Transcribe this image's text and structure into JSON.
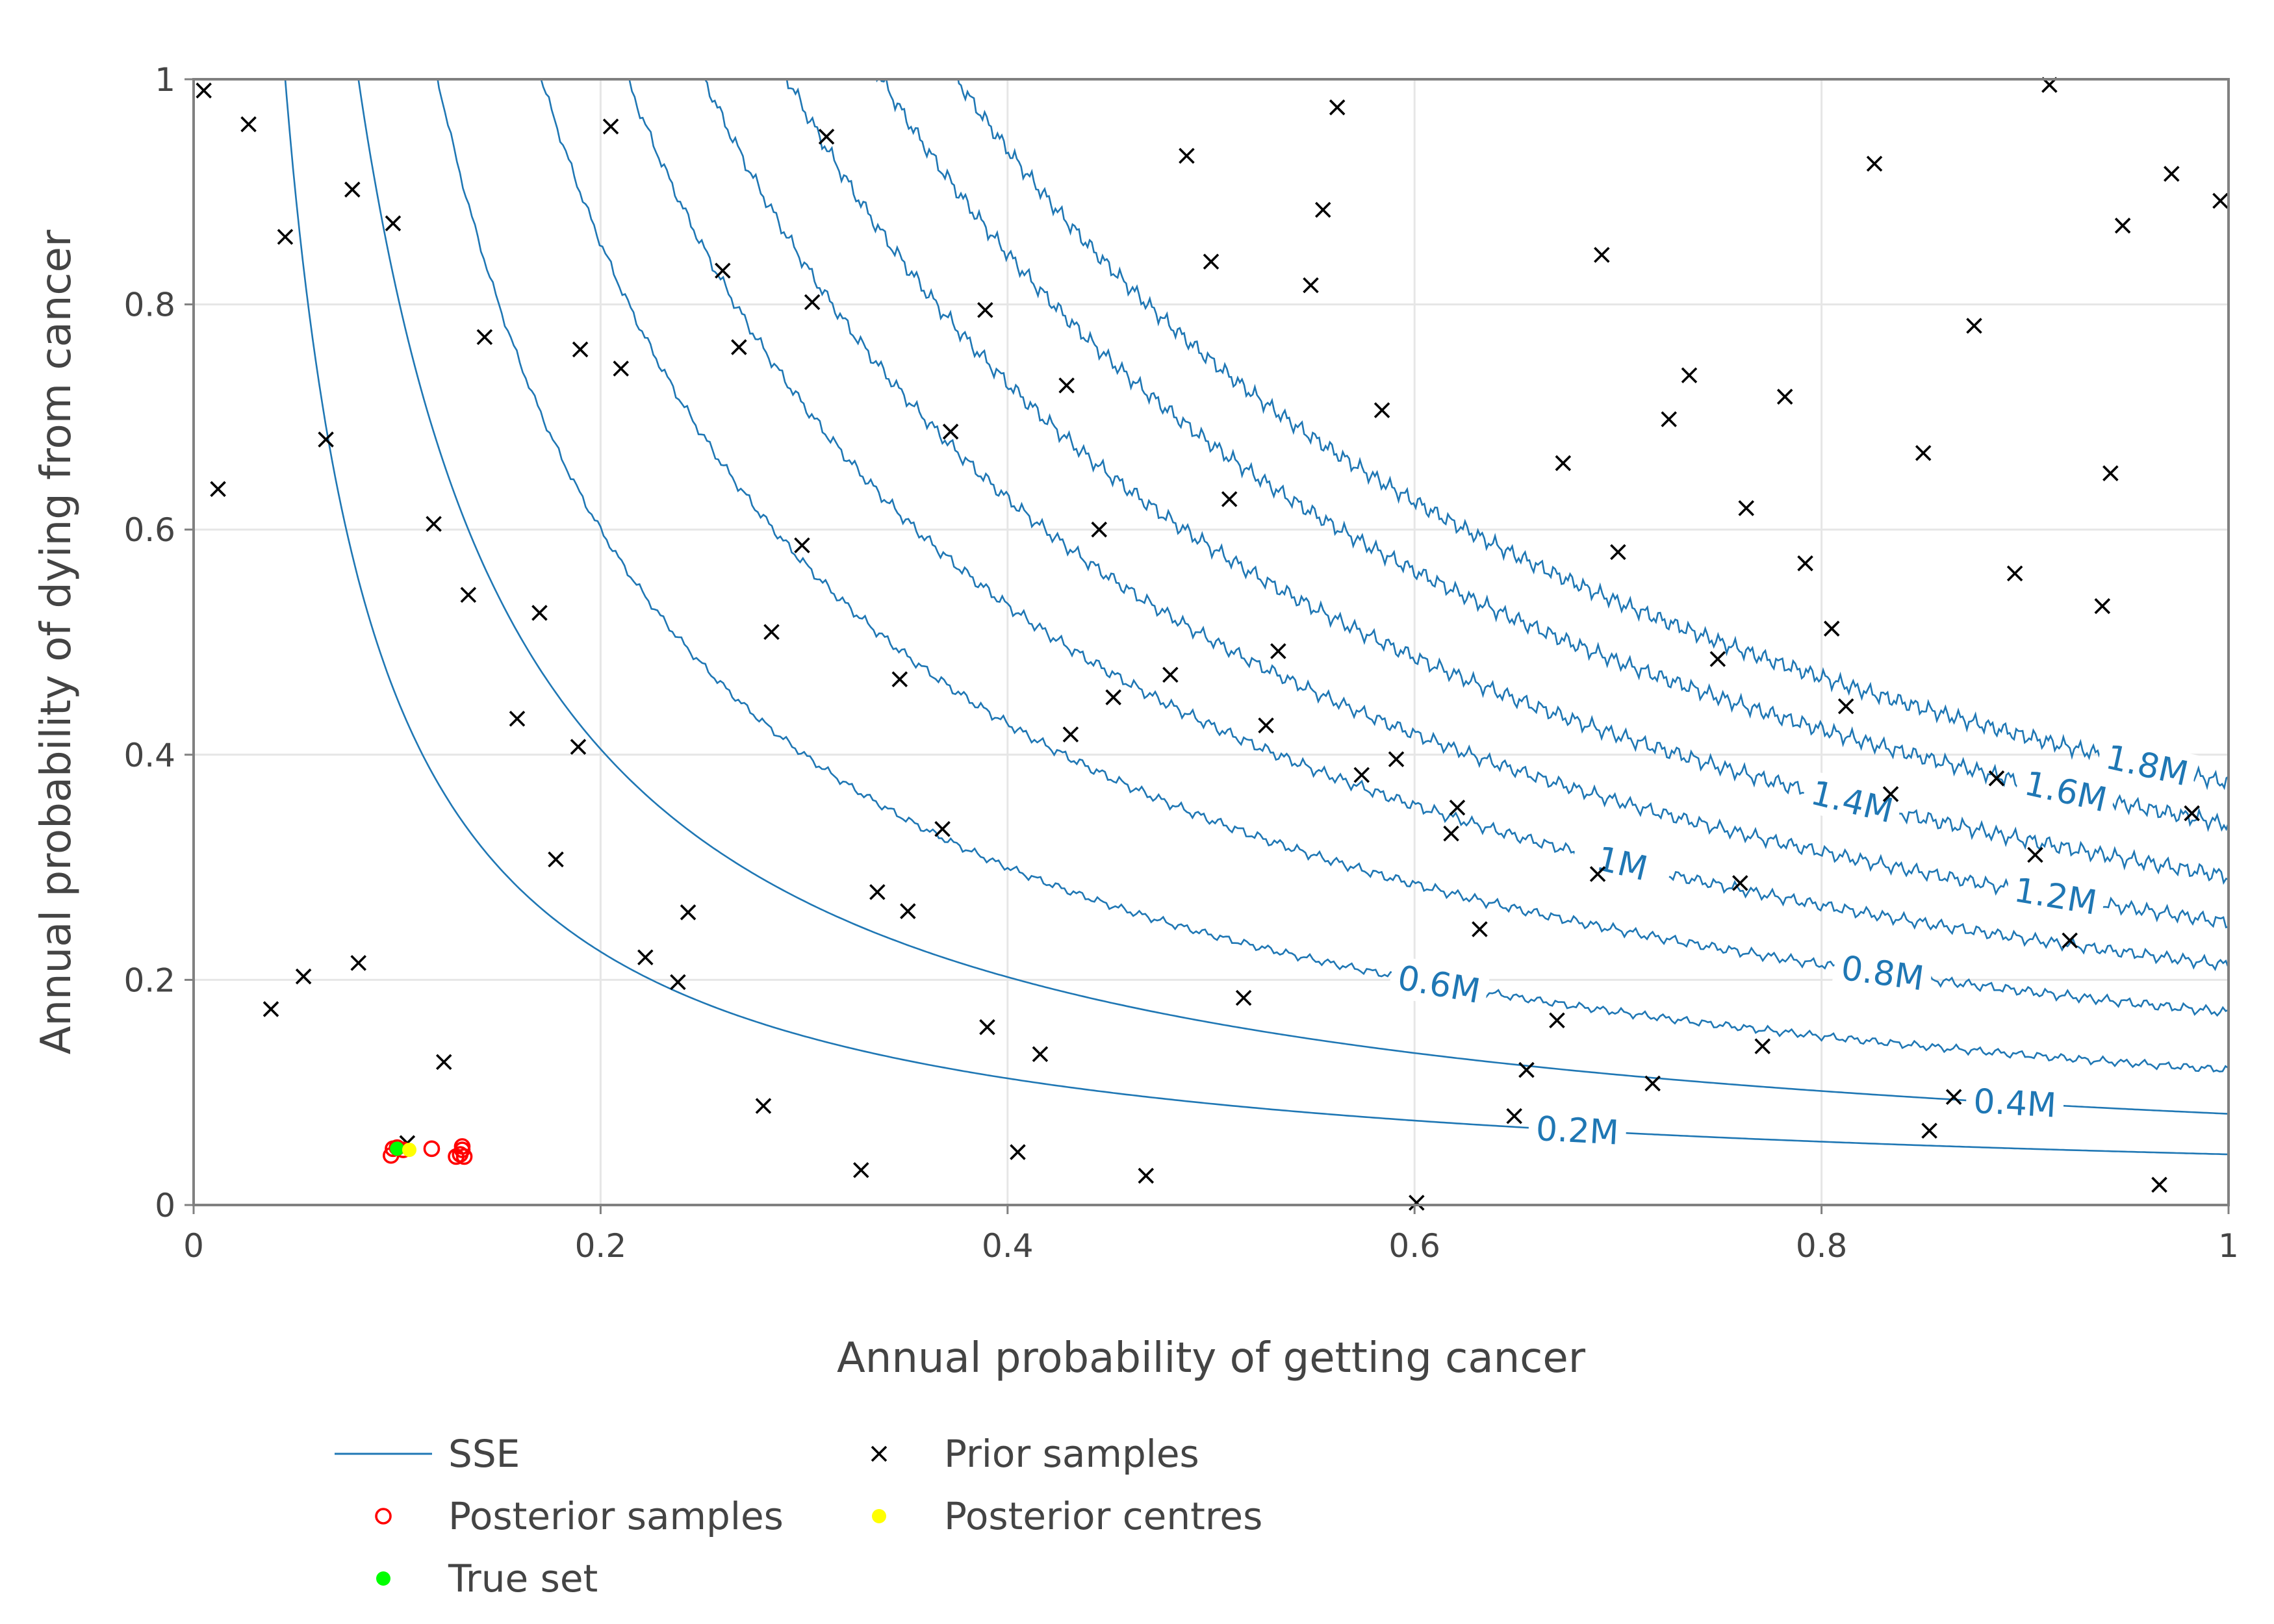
{
  "chart_data": {
    "type": "scatter",
    "title": "",
    "xlabel": "Annual probability of getting cancer",
    "ylabel": "Annual probability of dying from cancer",
    "xlim": [
      0,
      1
    ],
    "ylim": [
      0,
      1
    ],
    "x_ticks": [
      {
        "value": 0,
        "label": "0"
      },
      {
        "value": 0.2,
        "label": "0.2"
      },
      {
        "value": 0.4,
        "label": "0.4"
      },
      {
        "value": 0.6,
        "label": "0.6"
      },
      {
        "value": 0.8,
        "label": "0.8"
      },
      {
        "value": 1,
        "label": "1"
      }
    ],
    "y_ticks": [
      {
        "value": 0,
        "label": "0"
      },
      {
        "value": 0.2,
        "label": "0.2"
      },
      {
        "value": 0.4,
        "label": "0.4"
      },
      {
        "value": 0.6,
        "label": "0.6"
      },
      {
        "value": 0.8,
        "label": "0.8"
      },
      {
        "value": 1,
        "label": "1"
      }
    ],
    "grid": true,
    "legend_position": "bottom",
    "contours": {
      "name": "SSE",
      "color": "#1f77b4",
      "levels": [
        {
          "k": 0.045,
          "label": "0.2M",
          "label_x": 0.68,
          "wiggle": 0
        },
        {
          "k": 0.081,
          "label": "0.4M",
          "label_x": 0.895,
          "wiggle": 0
        },
        {
          "k": 0.12,
          "label": "0.6M",
          "label_x": 0.612,
          "wiggle": 0.004
        },
        {
          "k": 0.171,
          "label": "0.8M",
          "label_x": 0.83,
          "wiggle": 0.005
        },
        {
          "k": 0.213,
          "label": "1M",
          "label_x": 0.702,
          "wiggle": 0.006
        },
        {
          "k": 0.251,
          "label": "1.2M",
          "label_x": 0.915,
          "wiggle": 0.007
        },
        {
          "k": 0.292,
          "label": "1.4M",
          "label_x": 0.815,
          "wiggle": 0.008
        },
        {
          "k": 0.338,
          "label": "1.6M",
          "label_x": 0.92,
          "wiggle": 0.008
        },
        {
          "k": 0.375,
          "label": "1.8M",
          "label_x": 0.96,
          "wiggle": 0.008
        }
      ]
    },
    "prior_samples": {
      "name": "Prior samples",
      "color": "#000000",
      "points": [
        [
          0.005,
          0.99
        ],
        [
          0.027,
          0.96
        ],
        [
          0.045,
          0.86
        ],
        [
          0.078,
          0.902
        ],
        [
          0.098,
          0.872
        ],
        [
          0.012,
          0.636
        ],
        [
          0.065,
          0.68
        ],
        [
          0.118,
          0.605
        ],
        [
          0.135,
          0.542
        ],
        [
          0.143,
          0.771
        ],
        [
          0.17,
          0.526
        ],
        [
          0.19,
          0.76
        ],
        [
          0.205,
          0.958
        ],
        [
          0.21,
          0.743
        ],
        [
          0.159,
          0.432
        ],
        [
          0.189,
          0.407
        ],
        [
          0.178,
          0.307
        ],
        [
          0.038,
          0.174
        ],
        [
          0.054,
          0.203
        ],
        [
          0.081,
          0.215
        ],
        [
          0.123,
          0.127
        ],
        [
          0.105,
          0.055
        ],
        [
          0.26,
          0.83
        ],
        [
          0.268,
          0.762
        ],
        [
          0.304,
          0.802
        ],
        [
          0.311,
          0.949
        ],
        [
          0.299,
          0.586
        ],
        [
          0.284,
          0.509
        ],
        [
          0.222,
          0.22
        ],
        [
          0.238,
          0.198
        ],
        [
          0.243,
          0.26
        ],
        [
          0.28,
          0.088
        ],
        [
          0.328,
          0.031
        ],
        [
          0.336,
          0.278
        ],
        [
          0.347,
          0.467
        ],
        [
          0.351,
          0.261
        ],
        [
          0.368,
          0.334
        ],
        [
          0.372,
          0.687
        ],
        [
          0.389,
          0.795
        ],
        [
          0.39,
          0.158
        ],
        [
          0.405,
          0.047
        ],
        [
          0.416,
          0.134
        ],
        [
          0.429,
          0.728
        ],
        [
          0.431,
          0.418
        ],
        [
          0.445,
          0.6
        ],
        [
          0.452,
          0.451
        ],
        [
          0.468,
          0.026
        ],
        [
          0.48,
          0.471
        ],
        [
          0.488,
          0.932
        ],
        [
          0.5,
          0.838
        ],
        [
          0.509,
          0.627
        ],
        [
          0.516,
          0.184
        ],
        [
          0.527,
          0.426
        ],
        [
          0.533,
          0.492
        ],
        [
          0.549,
          0.817
        ],
        [
          0.555,
          0.884
        ],
        [
          0.562,
          0.975
        ],
        [
          0.574,
          0.382
        ],
        [
          0.584,
          0.706
        ],
        [
          0.591,
          0.396
        ],
        [
          0.601,
          0.002
        ],
        [
          0.618,
          0.33
        ],
        [
          0.621,
          0.353
        ],
        [
          0.632,
          0.245
        ],
        [
          0.649,
          0.079
        ],
        [
          0.655,
          0.12
        ],
        [
          0.67,
          0.164
        ],
        [
          0.673,
          0.659
        ],
        [
          0.69,
          0.294
        ],
        [
          0.692,
          0.844
        ],
        [
          0.7,
          0.58
        ],
        [
          0.717,
          0.108
        ],
        [
          0.725,
          0.698
        ],
        [
          0.735,
          0.737
        ],
        [
          0.749,
          0.485
        ],
        [
          0.76,
          0.286
        ],
        [
          0.763,
          0.619
        ],
        [
          0.771,
          0.141
        ],
        [
          0.782,
          0.718
        ],
        [
          0.792,
          0.57
        ],
        [
          0.805,
          0.512
        ],
        [
          0.812,
          0.443
        ],
        [
          0.826,
          0.925
        ],
        [
          0.834,
          0.365
        ],
        [
          0.85,
          0.668
        ],
        [
          0.853,
          0.066
        ],
        [
          0.865,
          0.096
        ],
        [
          0.875,
          0.781
        ],
        [
          0.886,
          0.379
        ],
        [
          0.895,
          0.561
        ],
        [
          0.905,
          0.311
        ],
        [
          0.912,
          0.995
        ],
        [
          0.922,
          0.235
        ],
        [
          0.938,
          0.532
        ],
        [
          0.942,
          0.65
        ],
        [
          0.948,
          0.87
        ],
        [
          0.966,
          0.018
        ],
        [
          0.972,
          0.916
        ],
        [
          0.982,
          0.348
        ],
        [
          0.996,
          0.892
        ]
      ]
    },
    "posterior_samples": {
      "name": "Posterior samples",
      "color": "#ff0000",
      "points": [
        [
          0.097,
          0.044
        ],
        [
          0.098,
          0.05
        ],
        [
          0.1,
          0.051
        ],
        [
          0.103,
          0.049
        ],
        [
          0.117,
          0.05
        ],
        [
          0.129,
          0.043
        ],
        [
          0.131,
          0.045
        ],
        [
          0.132,
          0.049
        ],
        [
          0.132,
          0.052
        ],
        [
          0.133,
          0.043
        ]
      ]
    },
    "posterior_centres": {
      "name": "Posterior centres",
      "color": "#ffff00",
      "points": [
        [
          0.106,
          0.049
        ]
      ]
    },
    "true_set": {
      "name": "True set",
      "color": "#00ff00",
      "points": [
        [
          0.1,
          0.05
        ]
      ]
    },
    "legend": [
      {
        "label": "SSE",
        "symbol": "line",
        "color": "#1f77b4"
      },
      {
        "label": "Prior samples",
        "symbol": "x",
        "color": "#000000"
      },
      {
        "label": "Posterior samples",
        "symbol": "open-circle",
        "color": "#ff0000"
      },
      {
        "label": "Posterior centres",
        "symbol": "dot",
        "color": "#ffff00"
      },
      {
        "label": "True set",
        "symbol": "dot",
        "color": "#00ff00"
      }
    ]
  }
}
